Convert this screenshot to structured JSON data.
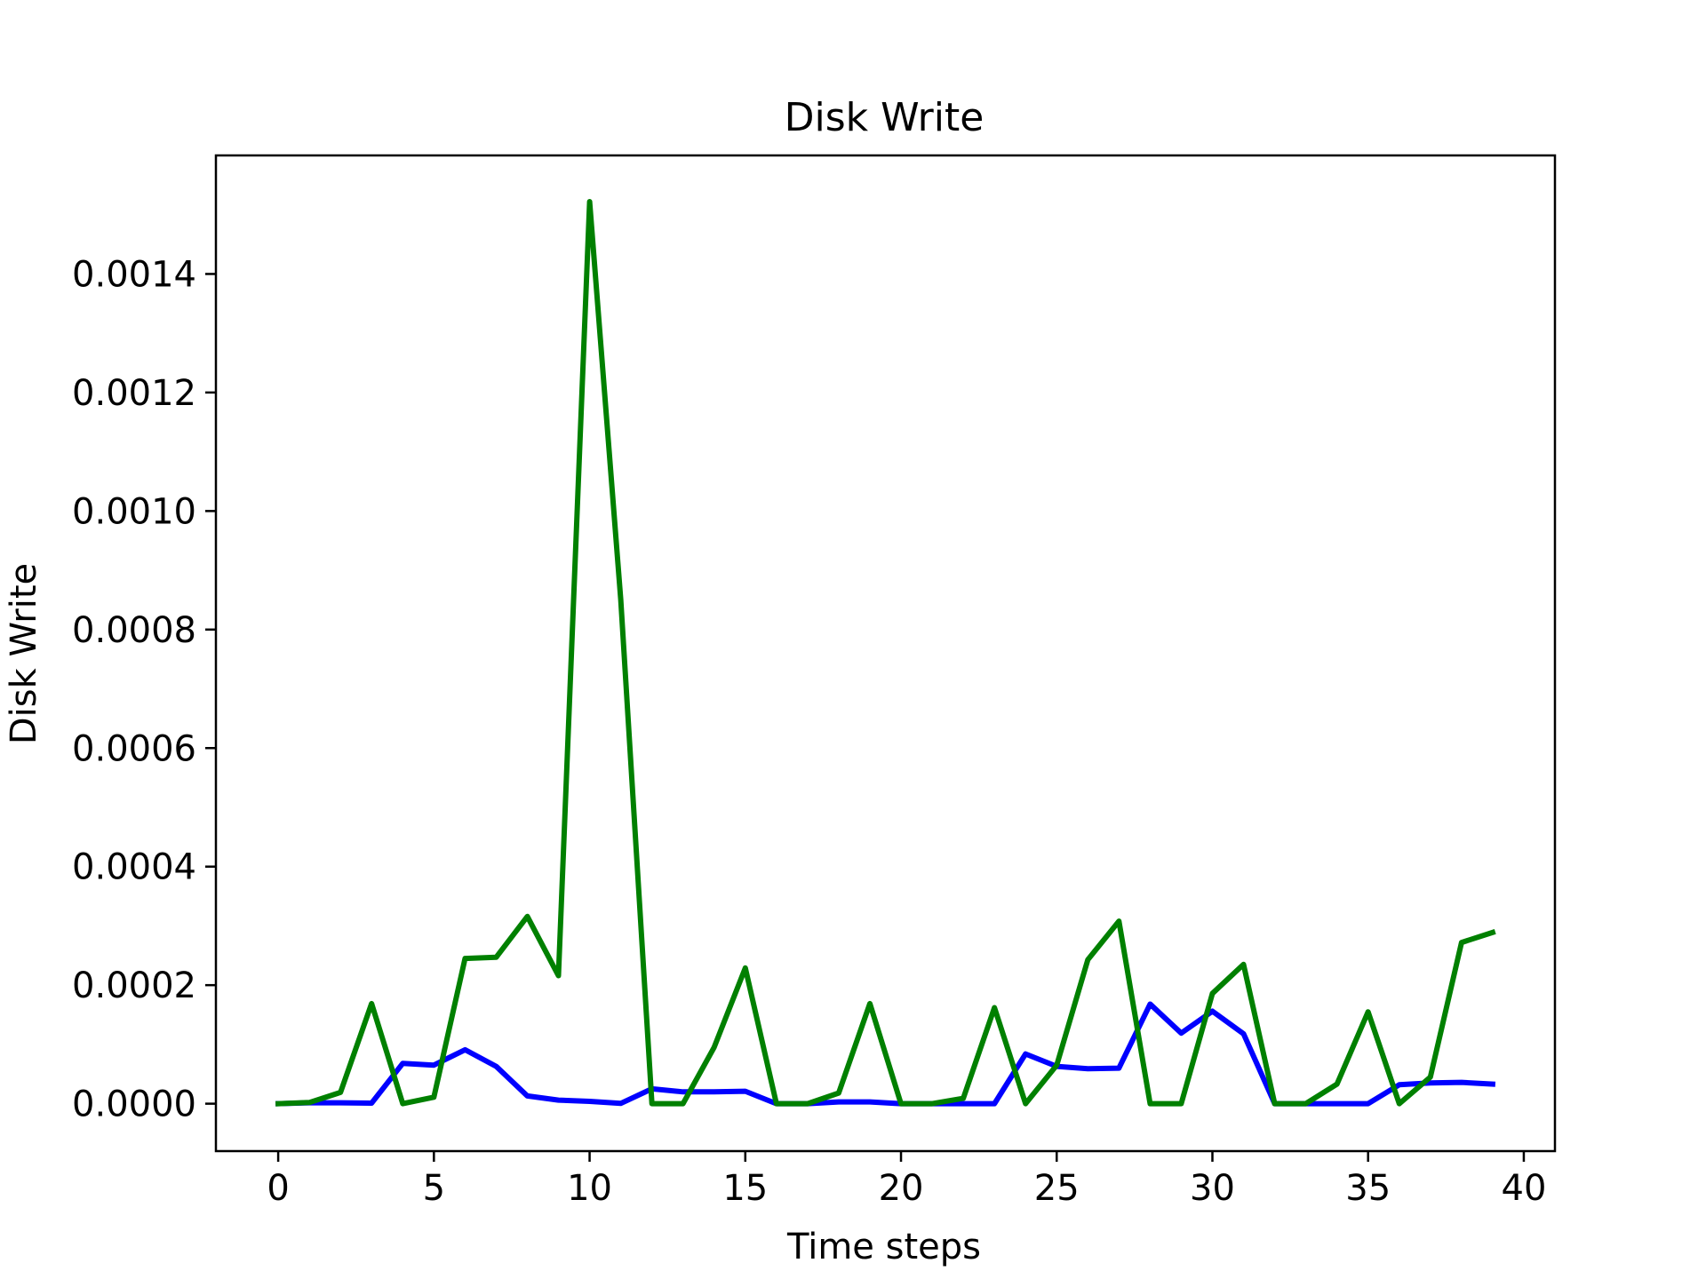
{
  "chart_data": {
    "type": "line",
    "title": "Disk Write",
    "xlabel": "Time steps",
    "ylabel": "Disk Write",
    "xlim": [
      -2,
      41
    ],
    "ylim": [
      -8e-05,
      0.0016
    ],
    "xticks": [
      0,
      5,
      10,
      15,
      20,
      25,
      30,
      35,
      40
    ],
    "xtick_labels": [
      "0",
      "5",
      "10",
      "15",
      "20",
      "25",
      "30",
      "35",
      "40"
    ],
    "yticks": [
      0,
      0.0002,
      0.0004,
      0.0006,
      0.0008,
      0.001,
      0.0012,
      0.0014
    ],
    "ytick_labels": [
      "0.0000",
      "0.0002",
      "0.0004",
      "0.0006",
      "0.0008",
      "0.0010",
      "0.0012",
      "0.0014"
    ],
    "grid": false,
    "x": [
      0,
      1,
      2,
      3,
      4,
      5,
      6,
      7,
      8,
      9,
      10,
      11,
      12,
      13,
      14,
      15,
      16,
      17,
      18,
      19,
      20,
      21,
      22,
      23,
      24,
      25,
      26,
      27,
      28,
      29,
      30,
      31,
      32,
      33,
      34,
      35,
      36,
      37,
      38,
      39
    ],
    "series": [
      {
        "color": "#0000ff",
        "values": [
          0.0,
          1.5e-06,
          1.5e-06,
          1e-06,
          6.8e-05,
          6.5e-05,
          9.1e-05,
          6.3e-05,
          1.3e-05,
          6e-06,
          4e-06,
          5e-07,
          2.5e-05,
          2e-05,
          2e-05,
          2.1e-05,
          0.0,
          0.0,
          3e-06,
          3e-06,
          0.0,
          0.0,
          0.0,
          0.0,
          8.4e-05,
          6.3e-05,
          5.9e-05,
          6e-05,
          0.000168,
          0.000119,
          0.000156,
          0.000118,
          0.0,
          0.0,
          0.0,
          0.0,
          3.2e-05,
          3.5e-05,
          3.6e-05,
          3.3e-05
        ]
      },
      {
        "color": "#008000",
        "values": [
          0.0,
          2e-06,
          1.9e-05,
          0.000169,
          0.0,
          1.1e-05,
          0.000245,
          0.000247,
          0.000316,
          0.000216,
          0.001522,
          0.000851,
          0.0,
          0.0,
          9.5e-05,
          0.000229,
          0.0,
          0.0,
          1.8e-05,
          0.000169,
          0.0,
          0.0,
          9e-06,
          0.000162,
          0.0,
          6.5e-05,
          0.000243,
          0.000308,
          0.0,
          0.0,
          0.000186,
          0.000235,
          0.0,
          0.0,
          3.3e-05,
          0.000155,
          0.0,
          4.5e-05,
          0.000272,
          0.000289
        ]
      }
    ]
  }
}
